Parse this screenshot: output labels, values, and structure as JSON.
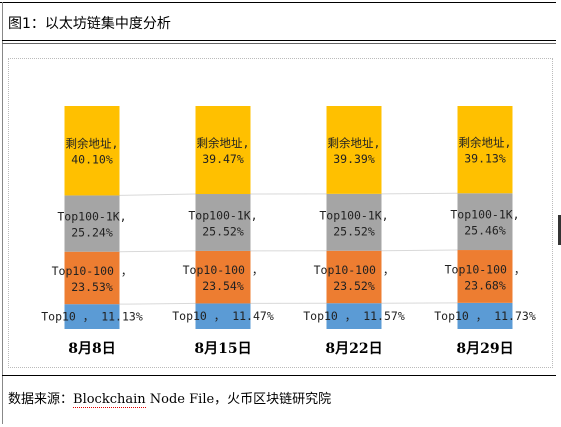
{
  "figure": {
    "title": "图1：以太坊链集中度分析",
    "source_prefix": "数据来源：",
    "source_underlined": "Blockchain",
    "source_rest": " Node File，火币区块链研究院"
  },
  "chart_data": {
    "type": "bar",
    "stacked": true,
    "percent": true,
    "categories": [
      "8月8日",
      "8月15日",
      "8月22日",
      "8月29日"
    ],
    "series": [
      {
        "name": "Top10",
        "values": [
          11.13,
          11.47,
          11.57,
          11.73
        ],
        "color": "#5b9bd5",
        "labels": [
          "Top10 ， 11.13%",
          "Top10 ， 11.47%",
          "Top10 ， 11.57%",
          "Top10 ， 11.73%"
        ]
      },
      {
        "name": "Top10-100",
        "values": [
          23.53,
          23.54,
          23.52,
          23.68
        ],
        "color": "#ed7d31",
        "labels": [
          "Top10-100 ，",
          "Top10-100 ，",
          "Top10-100 ，",
          "Top10-100 ，"
        ],
        "sublabels": [
          "23.53%",
          "23.54%",
          "23.52%",
          "23.68%"
        ]
      },
      {
        "name": "Top100-1K",
        "values": [
          25.24,
          25.52,
          25.52,
          25.46
        ],
        "color": "#a5a5a5",
        "labels": [
          "Top100-1K,",
          "Top100-1K,",
          "Top100-1K,",
          "Top100-1K,"
        ],
        "sublabels": [
          "25.24%",
          "25.52%",
          "25.52%",
          "25.46%"
        ]
      },
      {
        "name": "剩余地址",
        "values": [
          40.1,
          39.47,
          39.39,
          39.13
        ],
        "color": "#ffc000",
        "labels": [
          "剩余地址,",
          "剩余地址,",
          "剩余地址,",
          "剩余地址,"
        ],
        "sublabels": [
          "40.10%",
          "39.47%",
          "39.39%",
          "39.13%"
        ]
      }
    ],
    "ylim": [
      0,
      100
    ],
    "grid": false,
    "legend": "none"
  }
}
